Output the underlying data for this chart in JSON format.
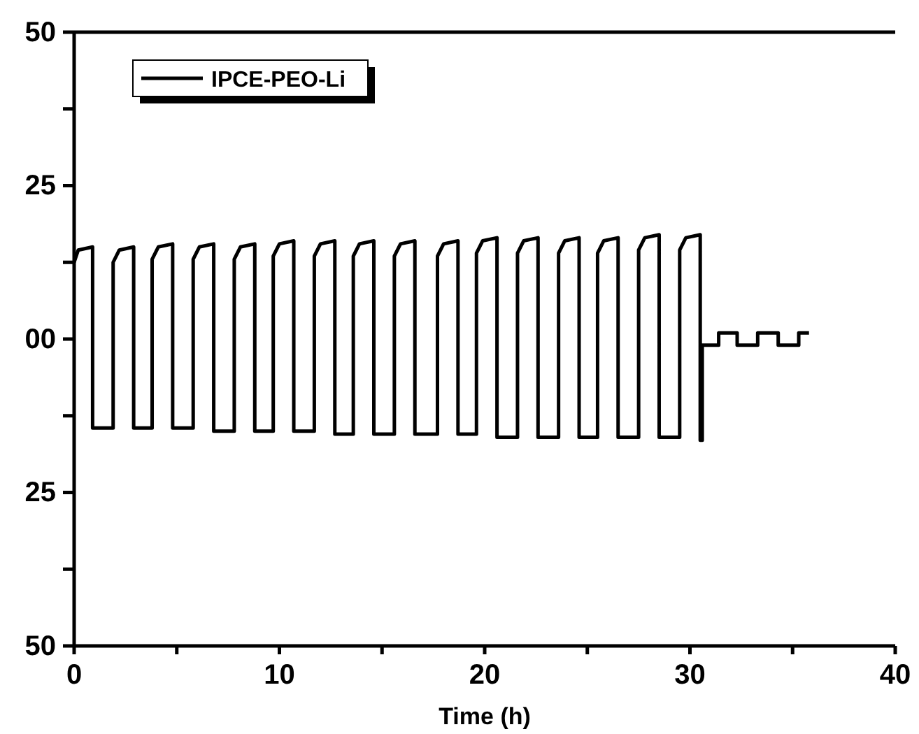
{
  "chart_data": {
    "type": "line",
    "xlabel": "Time (h)",
    "xlim": [
      0,
      40
    ],
    "xticks": [
      0,
      {
        "value": 5,
        "label": null
      },
      10,
      {
        "value": 15,
        "label": null
      },
      20,
      {
        "value": 25,
        "label": null
      },
      30,
      {
        "value": 35,
        "label": null
      },
      40
    ],
    "ylim": [
      -50,
      50
    ],
    "yticks": [
      {
        "value": -50,
        "label": "50"
      },
      {
        "value": -37.5,
        "label": null
      },
      {
        "value": -25,
        "label": "25"
      },
      {
        "value": -12.5,
        "label": null
      },
      {
        "value": 0,
        "label": "00"
      },
      {
        "value": 12.5,
        "label": null
      },
      {
        "value": 25,
        "label": "25"
      },
      {
        "value": 37.5,
        "label": null
      },
      {
        "value": 50,
        "label": "50"
      }
    ],
    "grid": false,
    "legend": "top left",
    "marker": "none",
    "line_style": "solid",
    "series": [
      {
        "name": "IPCE-PEO-Li",
        "color": "#000000",
        "x": [
          0,
          0.2,
          0.9,
          0.9,
          1.9,
          1.9,
          2.2,
          2.9,
          2.9,
          3.8,
          3.8,
          4.1,
          4.8,
          4.8,
          5.8,
          5.8,
          6.1,
          6.8,
          6.8,
          7.8,
          7.8,
          8.1,
          8.8,
          8.8,
          9.7,
          9.7,
          10.0,
          10.7,
          10.7,
          11.7,
          11.7,
          12.0,
          12.7,
          12.7,
          13.6,
          13.6,
          13.9,
          14.6,
          14.6,
          15.6,
          15.6,
          15.9,
          16.6,
          16.6,
          17.7,
          17.7,
          18.0,
          18.7,
          18.7,
          19.6,
          19.6,
          19.9,
          20.6,
          20.6,
          21.6,
          21.6,
          21.9,
          22.6,
          22.6,
          23.6,
          23.6,
          23.9,
          24.6,
          24.6,
          25.5,
          25.5,
          25.8,
          26.5,
          26.5,
          27.5,
          27.5,
          27.8,
          28.5,
          28.5,
          29.5,
          29.5,
          29.8,
          30.5,
          30.5,
          30.6,
          30.6,
          31.4,
          31.4,
          32.3,
          32.3,
          33.3,
          33.3,
          34.3,
          34.3,
          35.3,
          35.3,
          35.8
        ],
        "values": [
          12.5,
          14.5,
          15,
          -14.5,
          -14.5,
          12.5,
          14.5,
          15,
          -14.5,
          -14.5,
          13,
          15,
          15.5,
          -14.5,
          -14.5,
          13,
          15,
          15.5,
          -15,
          -15,
          13,
          15,
          15.5,
          -15,
          -15,
          13.5,
          15.5,
          16,
          -15,
          -15,
          13.5,
          15.5,
          16,
          -15.5,
          -15.5,
          13.5,
          15.5,
          16,
          -15.5,
          -15.5,
          13.5,
          15.5,
          16,
          -15.5,
          -15.5,
          13.5,
          15.5,
          16,
          -15.5,
          -15.5,
          14,
          16,
          16.5,
          -16,
          -16,
          14,
          16,
          16.5,
          -16,
          -16,
          14,
          16,
          16.5,
          -16,
          -16,
          14,
          16,
          16.5,
          -16,
          -16,
          14.5,
          16.5,
          17,
          -16,
          -16,
          14.5,
          16.5,
          17,
          -16.5,
          -16.5,
          -1,
          -1,
          1,
          1,
          -1,
          -1,
          1,
          1,
          -1,
          -1,
          1,
          1
        ]
      }
    ]
  }
}
